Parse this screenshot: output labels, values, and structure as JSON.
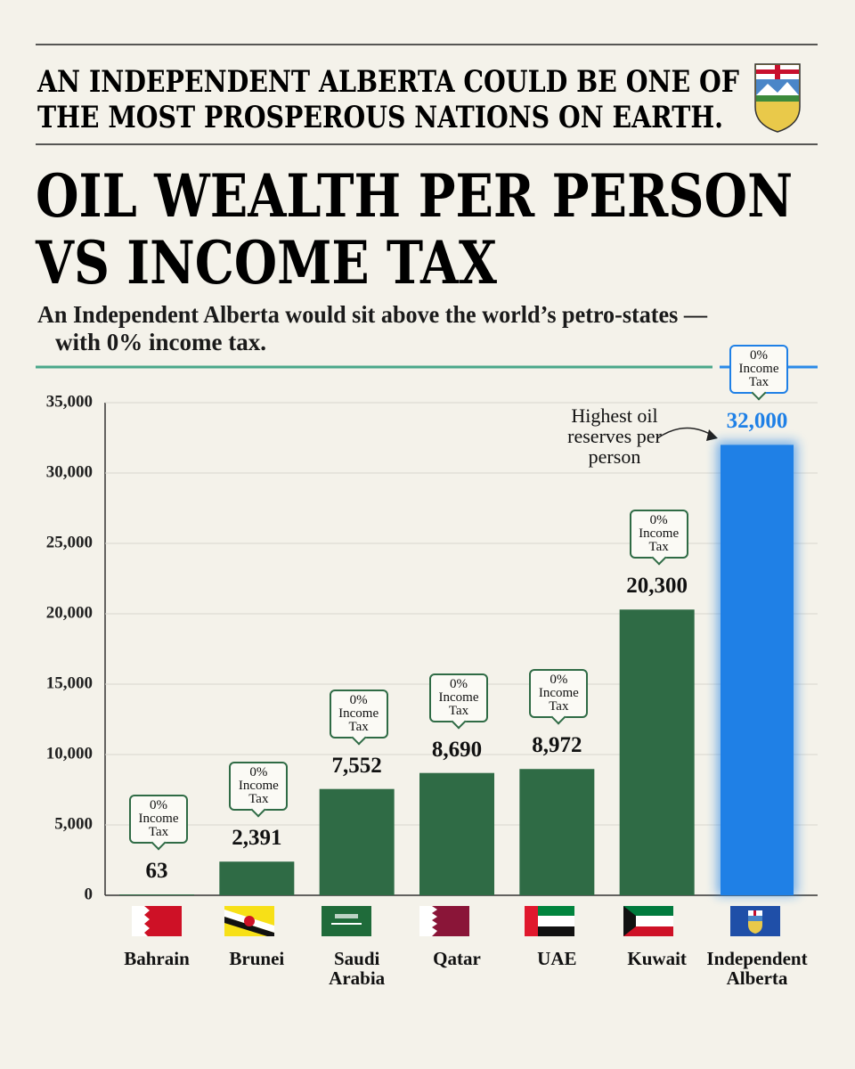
{
  "chart_data": {
    "type": "bar",
    "headline": [
      "AN INDEPENDENT ALBERTA COULD BE ONE OF",
      "THE MOST PROSPEROUS NATIONS ON EARTH."
    ],
    "title": [
      "OIL WEALTH PER PERSON",
      "VS INCOME TAX"
    ],
    "subtitle": [
      "An Independent Alberta would sit above the world’s petro-states —",
      "with 0% income tax."
    ],
    "categories": [
      "Bahrain",
      "Brunei",
      "Saudi Arabia",
      "Qatar",
      "UAE",
      "Kuwait",
      "Independent Alberta"
    ],
    "values": [
      63,
      2391,
      7552,
      8690,
      8972,
      20300,
      32000
    ],
    "value_labels": [
      "63",
      "2,391",
      "7,552",
      "8,690",
      "8,972",
      "20,300",
      "32,000"
    ],
    "colors": [
      "#2f6b45",
      "#2f6b45",
      "#2f6b45",
      "#2f6b45",
      "#2f6b45",
      "#2f6b45",
      "#1f80e6"
    ],
    "callout": "0% Income Tax",
    "annotation": "Highest oil reserves per person",
    "ylim": [
      0,
      35000
    ],
    "yticks": [
      0,
      {
        "value": 5000,
        "label": "5,000"
      },
      {
        "value": 10000,
        "label": "10,000"
      },
      {
        "value": 15000,
        "label": "15,000"
      },
      {
        "value": 20000,
        "label": "20,000"
      },
      {
        "value": 25000,
        "label": "25,000"
      },
      {
        "value": 30000,
        "label": "30,000"
      },
      {
        "value": 35000,
        "label": "35,000"
      }
    ],
    "grid": true
  }
}
